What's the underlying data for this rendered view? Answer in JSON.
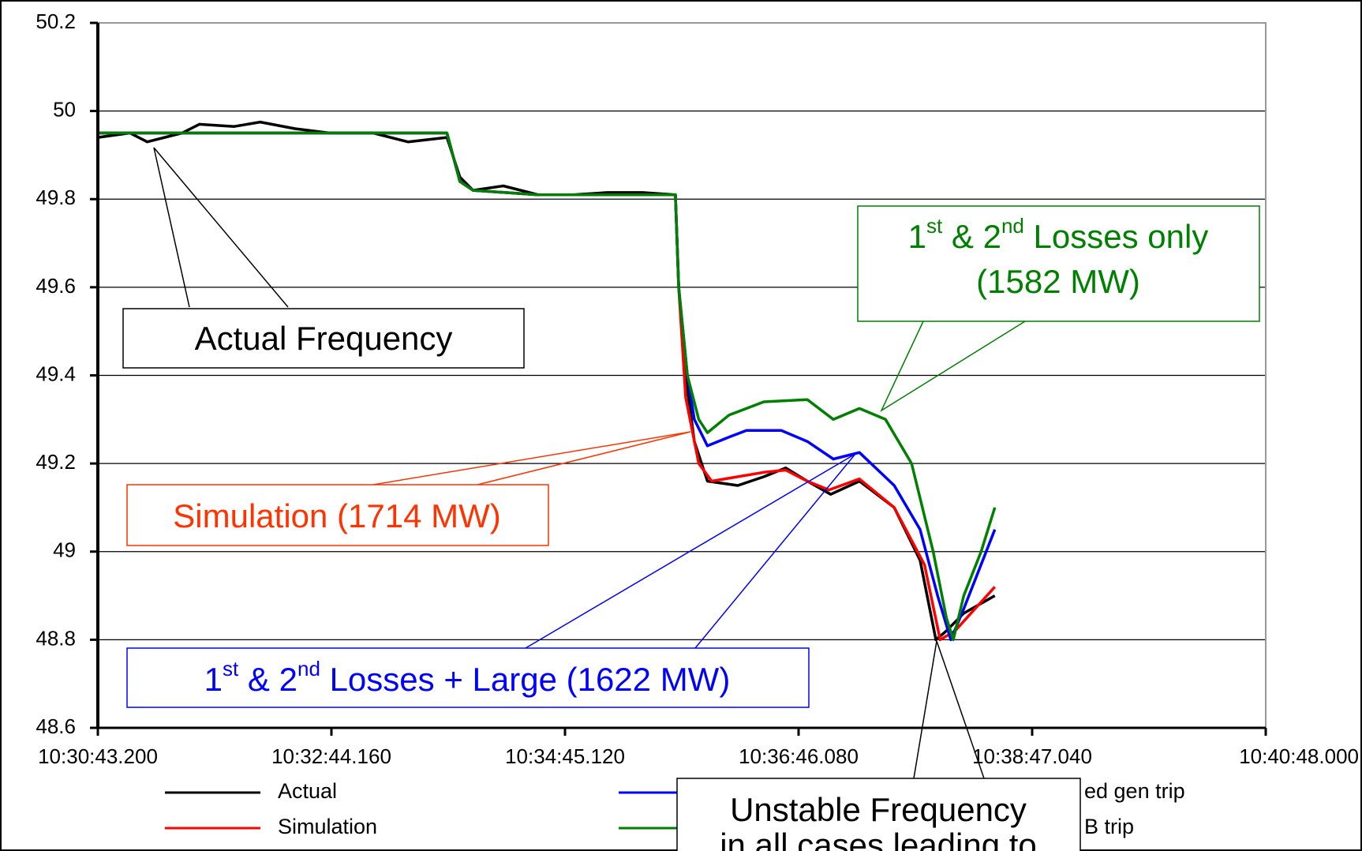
{
  "chart_data": {
    "type": "line",
    "xlim": [
      37843.2,
      38448.0
    ],
    "xticks": [
      {
        "value": 37843.2,
        "label": "10:30:43.200"
      },
      {
        "value": 37964.16,
        "label": "10:32:44.160"
      },
      {
        "value": 38085.12,
        "label": "10:34:45.120"
      },
      {
        "value": 38206.08,
        "label": "10:36:46.080"
      },
      {
        "value": 38327.04,
        "label": "10:38:47.040"
      },
      {
        "value": 38448.0,
        "label": "10:40:48.000"
      }
    ],
    "ylim": [
      48.6,
      50.2
    ],
    "yticks": [
      48.6,
      48.8,
      49,
      49.2,
      49.4,
      49.6,
      49.8,
      50,
      50.2
    ],
    "grid": true,
    "series": [
      {
        "name": "Actual",
        "color": "#000000",
        "x": [
          37843.2,
          37859.8,
          37868.8,
          37886.8,
          37895.8,
          37913.8,
          37927.3,
          37945.3,
          37963.3,
          37985.8,
          38003.8,
          38024.0,
          38030.7,
          38037.5,
          38053.2,
          38071.2,
          38089.2,
          38107.2,
          38125.2,
          38142.3,
          38144.0,
          38147.6,
          38152.1,
          38158.9,
          38174.6,
          38188.1,
          38199.4,
          38210.6,
          38222.7,
          38237.6,
          38255.6,
          38269.0,
          38277.2,
          38282.6,
          38291.6,
          38307.7
        ],
        "values": [
          49.94,
          49.95,
          49.93,
          49.95,
          49.97,
          49.965,
          49.975,
          49.96,
          49.95,
          49.95,
          49.93,
          49.94,
          49.85,
          49.82,
          49.83,
          49.81,
          49.81,
          49.815,
          49.815,
          49.81,
          49.6,
          49.4,
          49.25,
          49.16,
          49.15,
          49.17,
          49.19,
          49.16,
          49.13,
          49.16,
          49.1,
          48.98,
          48.8,
          48.82,
          48.86,
          48.9
        ]
      },
      {
        "name": "Simulation",
        "color": "#ff0000",
        "x": [
          37843.2,
          38024.0,
          38030.7,
          38037.5,
          38071.2,
          38142.3,
          38144.0,
          38147.6,
          38154.4,
          38161.1,
          38174.6,
          38188.1,
          38199.4,
          38210.6,
          38221.8,
          38237.6,
          38255.6,
          38271.3,
          38279.4,
          38287.1,
          38307.7
        ],
        "values": [
          49.95,
          49.95,
          49.84,
          49.82,
          49.81,
          49.81,
          49.6,
          49.35,
          49.2,
          49.16,
          49.17,
          49.18,
          49.185,
          49.16,
          49.14,
          49.165,
          49.1,
          48.97,
          48.8,
          48.82,
          48.92
        ]
      },
      {
        "name": "ed gen trip",
        "color": "#0000ff",
        "x": [
          37843.2,
          38024.0,
          38030.7,
          38037.5,
          38071.2,
          38142.3,
          38144.0,
          38148.5,
          38152.1,
          38158.9,
          38170.1,
          38179.1,
          38197.1,
          38210.6,
          38224.1,
          38237.6,
          38255.6,
          38269.0,
          38278.1,
          38284.9,
          38291.6,
          38307.7
        ],
        "values": [
          49.95,
          49.95,
          49.84,
          49.82,
          49.81,
          49.81,
          49.6,
          49.4,
          49.3,
          49.24,
          49.26,
          49.275,
          49.275,
          49.25,
          49.21,
          49.225,
          49.15,
          49.05,
          48.9,
          48.8,
          48.87,
          49.05
        ]
      },
      {
        "name": "B trip",
        "color": "#008000",
        "x": [
          37843.2,
          38024.0,
          38030.7,
          38037.5,
          38071.2,
          38142.3,
          38144.0,
          38148.5,
          38154.4,
          38158.9,
          38170.1,
          38188.1,
          38210.6,
          38224.1,
          38237.6,
          38251.1,
          38264.6,
          38275.8,
          38282.6,
          38286.2,
          38291.6,
          38300.6,
          38307.7
        ],
        "values": [
          49.95,
          49.95,
          49.84,
          49.82,
          49.81,
          49.81,
          49.6,
          49.4,
          49.3,
          49.27,
          49.31,
          49.34,
          49.345,
          49.3,
          49.325,
          49.3,
          49.2,
          49.0,
          48.85,
          48.8,
          48.9,
          49.0,
          49.1
        ]
      }
    ],
    "annotations": {
      "actual": "Actual Frequency",
      "simulation": "Simulation (1714 MW)",
      "large": {
        "parts": [
          "1",
          "st",
          " & 2",
          "nd",
          " Losses + Large (1622 MW)"
        ]
      },
      "losses": {
        "parts": [
          "1",
          "st",
          " & 2",
          "nd",
          " Losses only"
        ],
        "line2": "(1582 MW)"
      },
      "unstable": {
        "line1": "Unstable Frequency",
        "line2": "in all cases leading to"
      }
    }
  }
}
